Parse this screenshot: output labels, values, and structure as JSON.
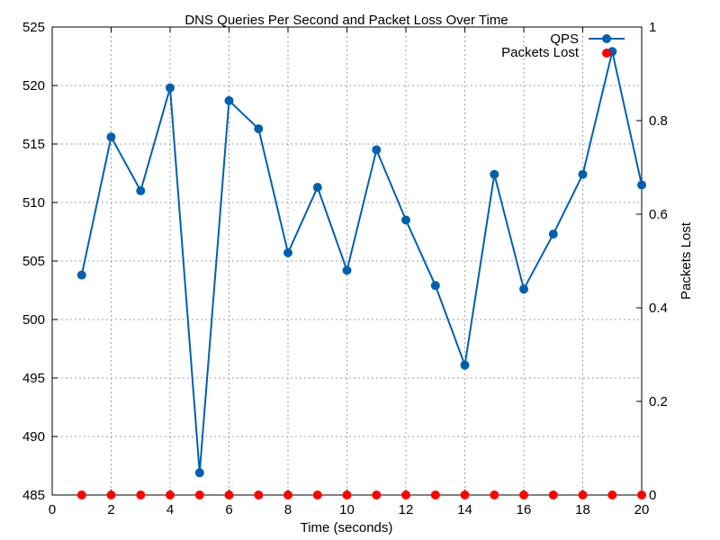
{
  "chart_data": {
    "type": "line",
    "title": "DNS Queries Per Second and Packet Loss Over Time",
    "xlabel": "Time (seconds)",
    "ylabel_left": "",
    "ylabel_right": "Packets Lost",
    "xlim": [
      0,
      20
    ],
    "ylim_left": [
      485,
      525
    ],
    "ylim_right": [
      0,
      1
    ],
    "x_ticks": [
      "0",
      "2",
      "4",
      "6",
      "8",
      "10",
      "12",
      "14",
      "16",
      "18",
      "20"
    ],
    "y_left_ticks": [
      "485",
      "490",
      "495",
      "500",
      "505",
      "510",
      "515",
      "520",
      "525"
    ],
    "y_right_ticks": [
      "0",
      "0.2",
      "0.4",
      "0.6",
      "0.8",
      "1"
    ],
    "grid": true,
    "legend_position": "top-right",
    "x": [
      1,
      2,
      3,
      4,
      5,
      6,
      7,
      8,
      9,
      10,
      11,
      12,
      13,
      14,
      15,
      16,
      17,
      18,
      19,
      20
    ],
    "series": [
      {
        "name": "QPS",
        "axis": "left",
        "color": "#0060ad",
        "values": [
          503.8,
          515.6,
          511.0,
          519.8,
          486.9,
          518.7,
          516.3,
          505.7,
          511.3,
          504.2,
          514.5,
          508.5,
          502.9,
          496.1,
          512.4,
          502.6,
          507.3,
          512.4,
          522.9,
          511.5
        ]
      },
      {
        "name": "Packets Lost",
        "axis": "right",
        "color": "#ff0000",
        "values": [
          0,
          0,
          0,
          0,
          0,
          0,
          0,
          0,
          0,
          0,
          0,
          0,
          0,
          0,
          0,
          0,
          0,
          0,
          0,
          0
        ]
      }
    ]
  }
}
